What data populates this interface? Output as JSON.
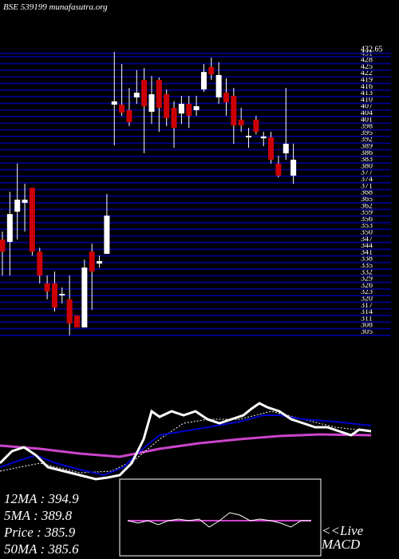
{
  "chart_data": [
    {
      "type": "candlestick",
      "title": "BSE 539199 munafasutra.org",
      "open": [
        348.4,
        347.3,
        361.0,
        365.0,
        371.8,
        342.9,
        328.5,
        328.5,
        323.1,
        321.3,
        314.0,
        308.6,
        342.9,
        337.5,
        341.9,
        409.4,
        409.4,
        406.9,
        412.7,
        420.6,
        406.2,
        420.6,
        414.1,
        408.0,
        405.4,
        409.8,
        406.9,
        416.3,
        426.4,
        412.7,
        414.8,
        413.4,
        402.6,
        394.6,
        402.6,
        394.2,
        394.6,
        382.7,
        387.4,
        377.3
      ],
      "high": [
        352.0,
        370.0,
        382.7,
        373.6,
        371.8,
        344.7,
        332.1,
        333.9,
        326.7,
        332.1,
        314.0,
        339.3,
        346.5,
        341.1,
        369.0,
        433.3,
        427.8,
        417.0,
        425.0,
        426.0,
        422.4,
        421.7,
        416.3,
        410.9,
        413.4,
        413.4,
        413.4,
        427.8,
        430.7,
        428.6,
        421.3,
        417.0,
        408.0,
        398.9,
        404.4,
        397.1,
        397.1,
        386.3,
        417.0,
        391.7
      ],
      "low": [
        332.1,
        332.1,
        348.4,
        352.0,
        341.1,
        328.5,
        321.3,
        315.8,
        319.5,
        305.0,
        308.6,
        308.6,
        316.6,
        335.7,
        341.9,
        391.0,
        404.4,
        399.7,
        409.8,
        387.4,
        400.7,
        397.1,
        399.7,
        389.9,
        400.7,
        398.9,
        404.4,
        415.2,
        420.6,
        409.8,
        404.4,
        391.7,
        397.1,
        389.9,
        396.0,
        390.6,
        382.7,
        376.5,
        384.5,
        373.6
      ],
      "close": [
        342.9,
        359.9,
        366.4,
        366.4,
        342.9,
        332.1,
        324.9,
        317.6,
        323.8,
        310.4,
        308.6,
        335.7,
        333.9,
        338.6,
        359.2,
        410.9,
        405.8,
        401.5,
        414.8,
        408.7,
        414.1,
        408.0,
        403.3,
        398.9,
        409.8,
        404.4,
        408.7,
        424.2,
        423.1,
        422.8,
        410.5,
        400.0,
        400.0,
        395.3,
        397.1,
        395.0,
        384.5,
        377.3,
        391.7,
        384.5
      ],
      "up_color": "#ffffff",
      "down_color": "#cc0000",
      "wick_color": "#ffffff",
      "grid_color": "#000080",
      "ylim": [
        305,
        434
      ],
      "grid": true,
      "yticks": [
        305,
        308,
        311,
        314,
        317,
        320,
        323,
        326,
        329,
        332,
        335,
        338,
        341,
        344,
        347,
        350,
        353,
        356,
        359,
        362,
        365,
        368,
        371,
        374,
        377,
        380,
        383,
        386,
        389,
        392,
        395,
        398,
        401,
        404,
        407,
        410,
        413,
        416,
        419,
        422,
        425,
        428,
        431,
        432.65
      ]
    },
    {
      "type": "line",
      "xlim": [
        0,
        465
      ],
      "ylim": [
        0,
        120
      ],
      "series": [
        {
          "color": "#cc44cc",
          "width": 3,
          "x": [
            0,
            50,
            100,
            150,
            200,
            250,
            300,
            350,
            400,
            465
          ],
          "values": [
            42,
            38,
            32,
            28,
            38,
            45,
            50,
            54,
            56,
            55
          ]
        },
        {
          "color": "#ffffff",
          "width": 1,
          "dash": true,
          "x": [
            0,
            50,
            100,
            140,
            170,
            200,
            230,
            260,
            300,
            340,
            380,
            420,
            465
          ],
          "values": [
            10,
            20,
            8,
            10,
            25,
            50,
            70,
            75,
            75,
            85,
            75,
            65,
            60
          ]
        },
        {
          "color": "#0000cc",
          "width": 2,
          "x": [
            0,
            20,
            45,
            70,
            100,
            130,
            155,
            175,
            200,
            230,
            260,
            300,
            330,
            350,
            380,
            420,
            465
          ],
          "values": [
            15,
            22,
            30,
            20,
            12,
            5,
            15,
            35,
            55,
            60,
            65,
            72,
            80,
            80,
            75,
            72,
            67
          ]
        },
        {
          "color": "#ffffff",
          "width": 3,
          "x": [
            0,
            15,
            30,
            45,
            60,
            80,
            100,
            120,
            135,
            150,
            165,
            180,
            190,
            200,
            215,
            230,
            245,
            260,
            275,
            290,
            305,
            315,
            325,
            335,
            350,
            365,
            380,
            395,
            410,
            425,
            440,
            450,
            465
          ],
          "values": [
            20,
            35,
            40,
            30,
            15,
            10,
            5,
            0,
            2,
            5,
            20,
            50,
            85,
            78,
            85,
            80,
            85,
            75,
            70,
            75,
            80,
            88,
            95,
            90,
            85,
            75,
            70,
            65,
            65,
            60,
            55,
            62,
            60
          ]
        }
      ],
      "annotations": [
        "12MA : 394.9",
        "5MA : 389.8",
        "Price   : 385.9",
        "50MA : 385.6"
      ]
    },
    {
      "type": "line",
      "xlim": [
        0,
        18
      ],
      "ylim": [
        -48,
        48
      ],
      "series": [
        {
          "color": "#cc44cc",
          "width": 2,
          "x": [
            0,
            18
          ],
          "values": [
            -4,
            -4
          ]
        },
        {
          "color": "#ffffff",
          "width": 1,
          "x": [
            0,
            1,
            2,
            3,
            4,
            5,
            6,
            7,
            8,
            9,
            10,
            11,
            12,
            13,
            14,
            15,
            16,
            17,
            18
          ],
          "values": [
            -4,
            -7,
            -4,
            -9,
            -4,
            -2,
            -4,
            -2,
            -12,
            -4,
            6,
            3,
            -4,
            -2,
            -4,
            -7,
            -12,
            -4,
            -4
          ]
        }
      ],
      "annotations": [
        "<<Live",
        "MACD"
      ]
    }
  ]
}
